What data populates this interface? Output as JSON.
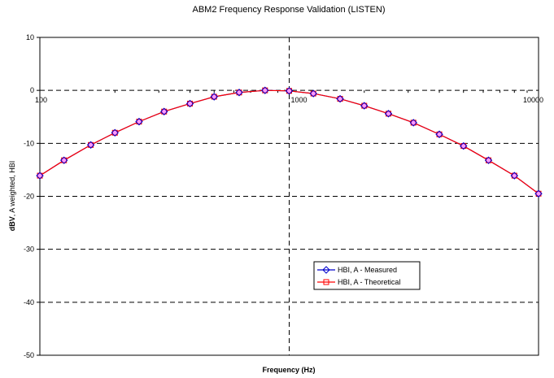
{
  "chart_data": {
    "type": "line",
    "title": "ABM2 Frequency Response Validation (LISTEN)",
    "xlabel": "Frequency (Hz)",
    "ylabel_bold": "dBV",
    "ylabel_rest": ", A weighted, HBI",
    "x_scale": "log",
    "xlim": [
      100,
      10000
    ],
    "ylim": [
      -50,
      10
    ],
    "y_ticks": [
      10,
      0,
      -10,
      -20,
      -30,
      -40,
      -50
    ],
    "y_tick_labels": [
      "10",
      "0",
      "-10",
      "-20",
      "-30",
      "-40",
      "-50"
    ],
    "x_tick_labels": [
      "100",
      "1000",
      "10000"
    ],
    "grid": "dashed",
    "legend_position": "lower-right-center",
    "x": [
      100,
      125,
      160,
      200,
      250,
      315,
      400,
      500,
      630,
      800,
      1000,
      1250,
      1600,
      2000,
      2500,
      3150,
      4000,
      5000,
      6300,
      8000,
      10000
    ],
    "series": [
      {
        "name": "HBI, A - Measured",
        "color": "#0000cc",
        "marker": "diamond",
        "values": [
          -16.1,
          -13.2,
          -10.3,
          -8.0,
          -5.9,
          -4.0,
          -2.5,
          -1.2,
          -0.4,
          0.0,
          -0.1,
          -0.6,
          -1.6,
          -2.9,
          -4.4,
          -6.1,
          -8.3,
          -10.5,
          -13.2,
          -16.1,
          -19.5
        ]
      },
      {
        "name": "HBI, A - Theoretical",
        "color": "#ff0000",
        "marker": "square",
        "values": [
          -16.1,
          -13.2,
          -10.3,
          -8.0,
          -5.9,
          -4.0,
          -2.5,
          -1.2,
          -0.4,
          0.0,
          -0.1,
          -0.6,
          -1.6,
          -2.9,
          -4.4,
          -6.1,
          -8.3,
          -10.5,
          -13.2,
          -16.1,
          -19.5
        ]
      }
    ]
  }
}
